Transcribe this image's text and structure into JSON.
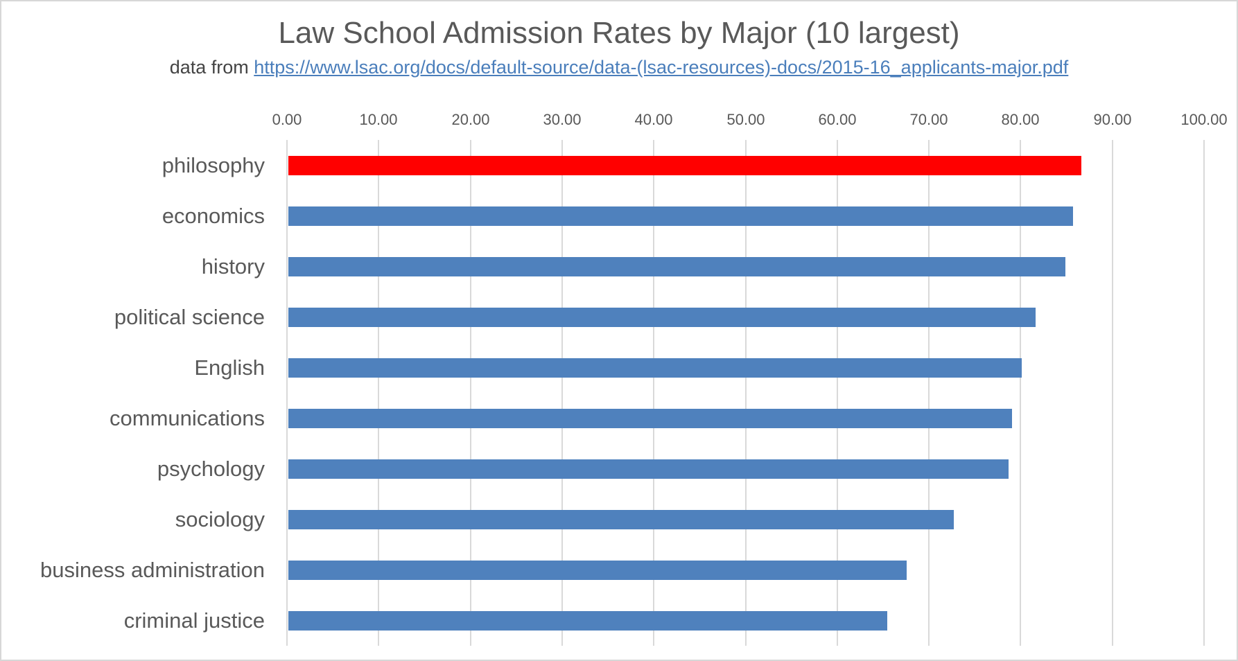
{
  "header": {
    "title": "Law School Admission Rates by Major (10 largest)",
    "subtitle_prefix": "data from ",
    "link_text": "https://www.lsac.org/docs/default-source/data-(lsac-resources)-docs/2015-16_applicants-major.pdf"
  },
  "chart_data": {
    "type": "bar",
    "orientation": "horizontal",
    "title": "Law School Admission Rates by Major (10 largest)",
    "source_note": "data from https://www.lsac.org/docs/default-source/data-(lsac-resources)-docs/2015-16_applicants-major.pdf",
    "categories": [
      "philosophy",
      "economics",
      "history",
      "political science",
      "English",
      "communications",
      "psychology",
      "sociology",
      "business administration",
      "criminal justice"
    ],
    "values": [
      86.5,
      85.6,
      84.7,
      81.5,
      80.0,
      78.9,
      78.5,
      72.6,
      67.4,
      65.3
    ],
    "highlight_index": 0,
    "xlim": [
      0,
      100
    ],
    "x_tick_labels": [
      "0.00",
      "10.00",
      "20.00",
      "30.00",
      "40.00",
      "50.00",
      "60.00",
      "70.00",
      "80.00",
      "90.00",
      "100.00"
    ],
    "x_axis_position": "top",
    "grid": true,
    "legend": false,
    "colors": {
      "highlight_bar": "#FF0000",
      "default_bar": "#4F81BD",
      "gridline": "#D9D9D9",
      "text": "#595959",
      "link": "#4A7EBB"
    }
  }
}
